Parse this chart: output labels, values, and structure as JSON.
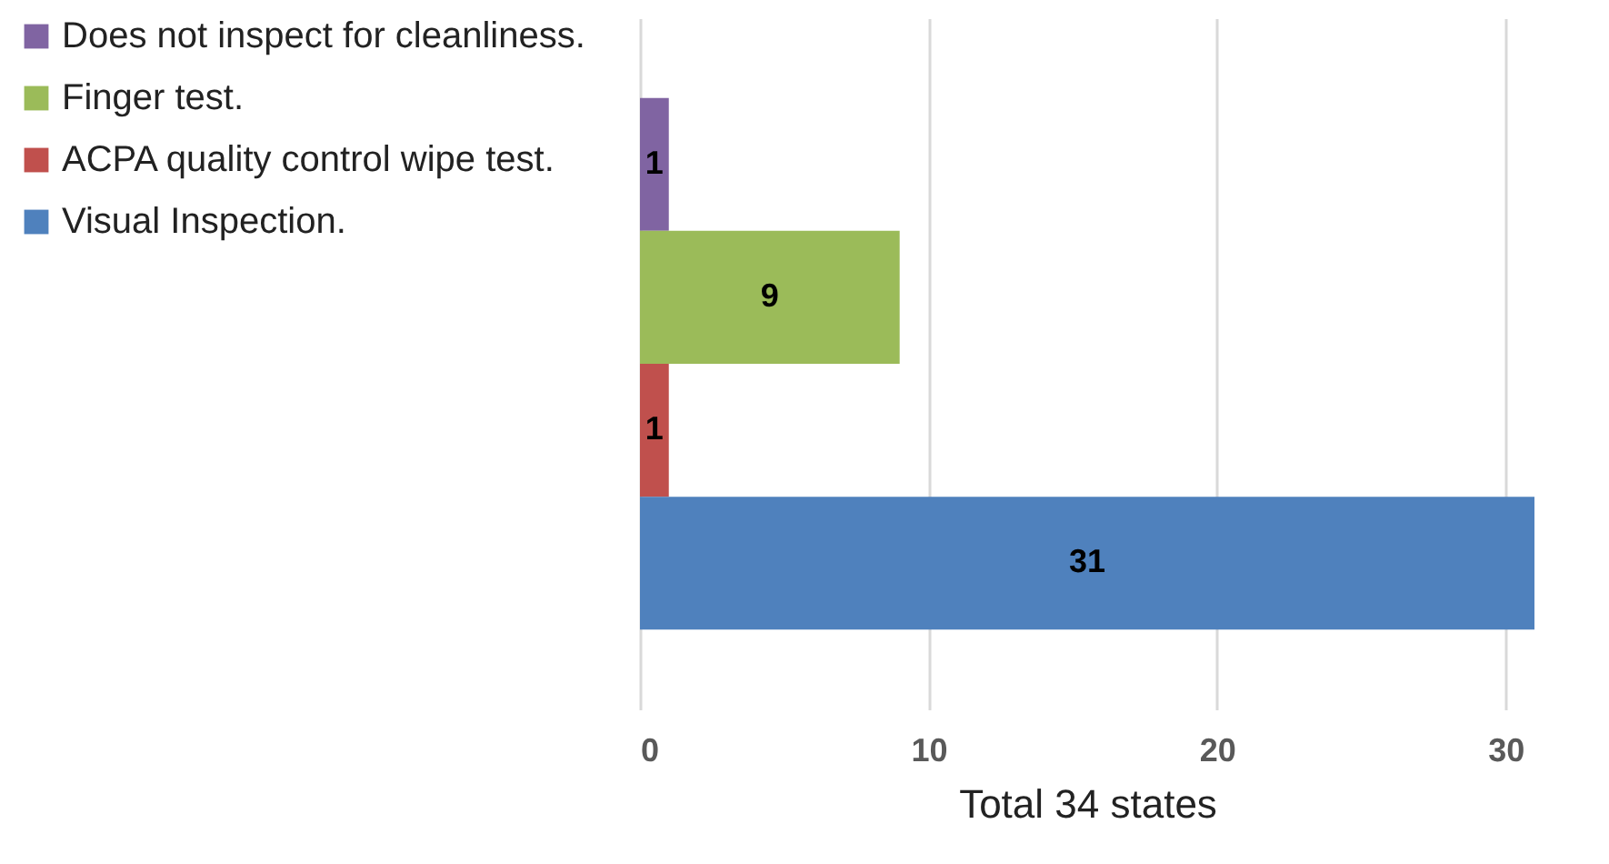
{
  "chart_data": {
    "type": "bar",
    "orientation": "horizontal",
    "categories": [
      null
    ],
    "xlabel": "Total 34 states",
    "xlim": [
      0,
      31
    ],
    "xticks": [
      0,
      10,
      20,
      30
    ],
    "grid": "x",
    "legend": "left",
    "data_labels": true,
    "series": [
      {
        "name": "Does not inspect for cleanliness.",
        "color": "#8064a2",
        "values": [
          1
        ]
      },
      {
        "name": "Finger test.",
        "color": "#9bbb59",
        "values": [
          9
        ]
      },
      {
        "name": "ACPA quality control wipe test.",
        "color": "#c0504d",
        "values": [
          1
        ]
      },
      {
        "name": "Visual Inspection.",
        "color": "#4f81bd",
        "values": [
          31
        ]
      }
    ]
  }
}
